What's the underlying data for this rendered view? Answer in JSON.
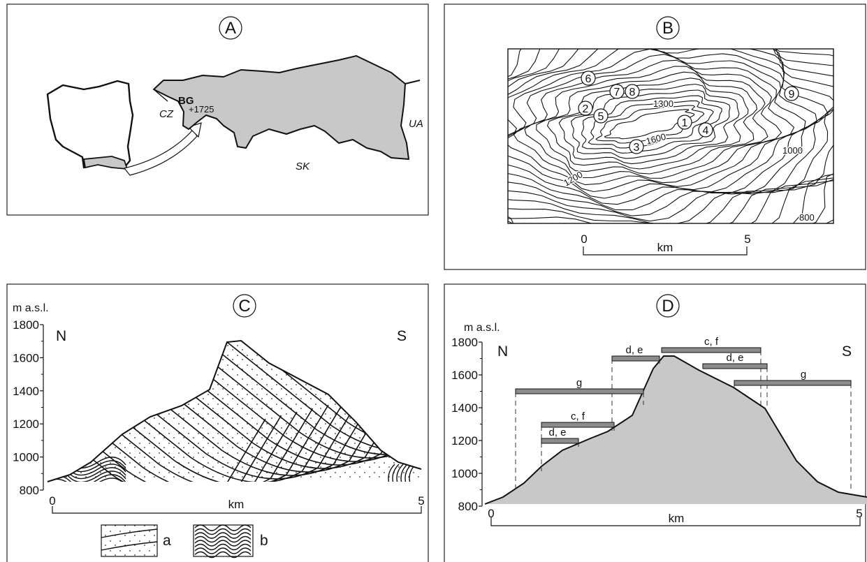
{
  "panels": {
    "A": {
      "label": "A",
      "region_label": "BG",
      "peak": "+1725",
      "countries": {
        "cz": "CZ",
        "sk": "SK",
        "ua": "UA"
      },
      "colors": {
        "fill": "#c8c8c8"
      }
    },
    "B": {
      "label": "B",
      "sites": [
        "1",
        "2",
        "3",
        "4",
        "5",
        "6",
        "7",
        "8",
        "9"
      ],
      "contour_labels": [
        "1300",
        "1600",
        "1000",
        "1200",
        "800"
      ],
      "scale": {
        "start": "0",
        "end": "5",
        "unit": "km"
      }
    },
    "C": {
      "label": "C",
      "y_title": "m a.s.l.",
      "y_ticks": [
        "1800",
        "1600",
        "1400",
        "1200",
        "1000",
        "800"
      ],
      "left_dir": "N",
      "right_dir": "S",
      "x_start": "0",
      "x_end": "5",
      "x_unit": "km",
      "legend": {
        "a": "a",
        "b": "b"
      }
    },
    "D": {
      "label": "D",
      "y_title": "m a.s.l.",
      "y_ticks": [
        "1800",
        "1600",
        "1400",
        "1200",
        "1000",
        "800"
      ],
      "left_dir": "N",
      "right_dir": "S",
      "x_start": "0",
      "x_end": "5",
      "x_unit": "km",
      "zones": {
        "g_left": "g",
        "cf_low": "c, f",
        "de_low": "d, e",
        "de_mid": "d, e",
        "cf_top": "c, f",
        "de_right": "d, e",
        "g_right": "g"
      },
      "colors": {
        "profile": "#c8c8c8",
        "bar": "#8c8c8c"
      }
    }
  }
}
